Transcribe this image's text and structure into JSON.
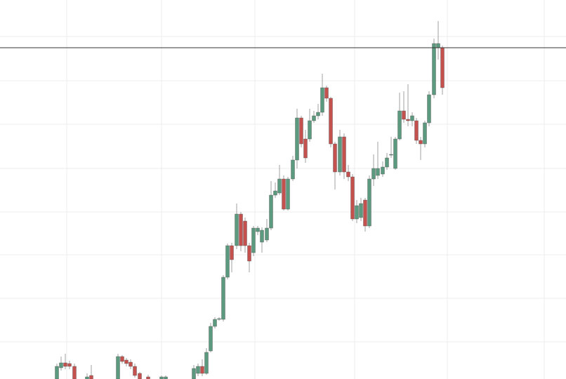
{
  "chart_data": {
    "type": "candlestick",
    "x": [
      81,
      87,
      93,
      99,
      106,
      124,
      130,
      168,
      174,
      180,
      186,
      192,
      199,
      211,
      230,
      236,
      276,
      282,
      288,
      294,
      300,
      306,
      312,
      318,
      324,
      330,
      337,
      343,
      349,
      355,
      361,
      367,
      373,
      380,
      386,
      392,
      398,
      404,
      410,
      417,
      423,
      429,
      435,
      441,
      447,
      453,
      459,
      465,
      471,
      477,
      484,
      490,
      496,
      502,
      508,
      514,
      520,
      526,
      532,
      538,
      545,
      551,
      557,
      563,
      569,
      575,
      581,
      587,
      593,
      599,
      605,
      611,
      618,
      624,
      630
    ],
    "open": [
      0,
      16,
      23,
      22,
      18,
      0,
      5,
      0,
      32,
      27,
      24,
      18,
      8,
      3,
      0,
      0,
      0,
      8,
      18,
      8,
      40,
      75,
      85,
      85,
      145,
      190,
      190,
      235,
      225,
      190,
      180,
      210,
      195,
      198,
      215,
      262,
      265,
      285,
      242,
      285,
      312,
      372,
      342,
      342,
      368,
      375,
      380,
      415,
      400,
      335,
      295,
      345,
      295,
      288,
      228,
      230,
      255,
      218,
      285,
      290,
      292,
      302,
      319,
      300,
      342,
      382,
      370,
      368,
      368,
      340,
      335,
      365,
      405,
      472,
      472
    ],
    "high": [
      22,
      32,
      36,
      26,
      22,
      8,
      20,
      36,
      34,
      30,
      28,
      22,
      10,
      6,
      5,
      5,
      20,
      22,
      28,
      44,
      80,
      88,
      88,
      148,
      193,
      194,
      250,
      238,
      230,
      194,
      218,
      218,
      216,
      228,
      282,
      280,
      305,
      290,
      288,
      318,
      385,
      375,
      355,
      385,
      382,
      392,
      435,
      418,
      402,
      338,
      355,
      350,
      305,
      292,
      255,
      258,
      258,
      290,
      320,
      338,
      310,
      322,
      345,
      345,
      408,
      410,
      420,
      380,
      372,
      345,
      368,
      410,
      485,
      510,
      475
    ],
    "low": [
      0,
      12,
      14,
      14,
      0,
      0,
      0,
      0,
      22,
      18,
      14,
      2,
      0,
      0,
      0,
      0,
      0,
      4,
      4,
      6,
      38,
      72,
      83,
      82,
      142,
      152,
      185,
      182,
      180,
      152,
      175,
      205,
      180,
      195,
      212,
      258,
      262,
      240,
      240,
      282,
      300,
      330,
      308,
      338,
      365,
      370,
      375,
      395,
      330,
      270,
      290,
      285,
      282,
      225,
      222,
      225,
      210,
      215,
      275,
      285,
      288,
      298,
      315,
      298,
      340,
      365,
      360,
      360,
      335,
      312,
      330,
      360,
      400,
      455,
      405
    ],
    "close": [
      18,
      23,
      18,
      18,
      0,
      3,
      0,
      32,
      25,
      22,
      18,
      5,
      0,
      0,
      3,
      3,
      15,
      18,
      8,
      38,
      75,
      85,
      86,
      145,
      190,
      170,
      235,
      190,
      190,
      168,
      215,
      215,
      212,
      215,
      262,
      268,
      285,
      242,
      285,
      312,
      372,
      335,
      315,
      368,
      375,
      380,
      415,
      400,
      335,
      295,
      345,
      295,
      288,
      228,
      247,
      250,
      218,
      285,
      300,
      300,
      302,
      315,
      320,
      342,
      382,
      370,
      368,
      375,
      340,
      335,
      365,
      405,
      478,
      478,
      415
    ],
    "up_color": "#5b9a7e",
    "down_color": "#c5514f",
    "xlim": [
      0,
      806
    ],
    "xticks": [
      95,
      230,
      363,
      505,
      637,
      775
    ],
    "ylim": [
      0,
      540
    ],
    "yticks": [
      53,
      115,
      177,
      238,
      300,
      363,
      425,
      488
    ],
    "hline": 472,
    "grid": true
  }
}
